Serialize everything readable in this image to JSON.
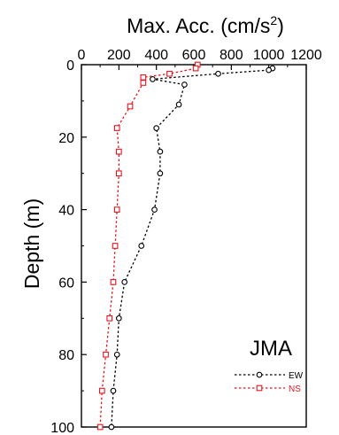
{
  "chart_data": {
    "type": "line",
    "xlabel": "Max. Acc. (cm/s",
    "xlabel_sup": "2",
    "xlabel_close": ")",
    "ylabel": "Depth (m)",
    "xlim": [
      0,
      1200
    ],
    "ylim": [
      0,
      100
    ],
    "y_inverted": true,
    "x_axis_position": "top",
    "grid": false,
    "x_ticks": [
      "0",
      "200",
      "400",
      "600",
      "800",
      "1000",
      "1200"
    ],
    "y_ticks": [
      "0",
      "20",
      "40",
      "60",
      "80",
      "100"
    ],
    "annotation": "JMA",
    "legend_position": "bottom-right",
    "series": [
      {
        "name": "EW",
        "color": "#000000",
        "marker": "circle",
        "points": [
          [
            1020,
            1
          ],
          [
            1000,
            1.5
          ],
          [
            730,
            2.5
          ],
          [
            380,
            4
          ],
          [
            550,
            5.5
          ],
          [
            520,
            11
          ],
          [
            400,
            17.5
          ],
          [
            420,
            24
          ],
          [
            420,
            30
          ],
          [
            390,
            40
          ],
          [
            320,
            50
          ],
          [
            230,
            60
          ],
          [
            200,
            70
          ],
          [
            190,
            80
          ],
          [
            170,
            90
          ],
          [
            160,
            100
          ]
        ]
      },
      {
        "name": "NS",
        "color": "#e8141e",
        "marker": "square",
        "points": [
          [
            620,
            0
          ],
          [
            610,
            1
          ],
          [
            470,
            2.5
          ],
          [
            330,
            3.5
          ],
          [
            330,
            5
          ],
          [
            260,
            11.5
          ],
          [
            190,
            17.5
          ],
          [
            200,
            24
          ],
          [
            200,
            30
          ],
          [
            190,
            40
          ],
          [
            180,
            50
          ],
          [
            170,
            60
          ],
          [
            150,
            70
          ],
          [
            130,
            80
          ],
          [
            110,
            90
          ],
          [
            100,
            100
          ]
        ]
      }
    ]
  }
}
